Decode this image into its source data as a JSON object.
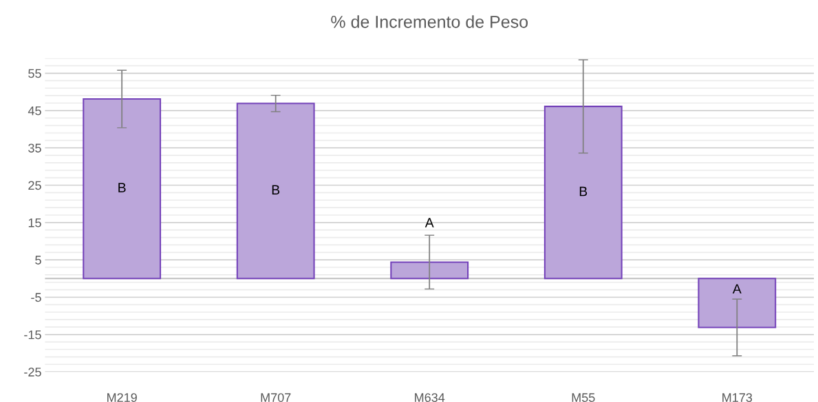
{
  "chart_data": {
    "type": "bar",
    "title": "% de Incremento de Peso",
    "categories": [
      "M219",
      "M707",
      "M634",
      "M55",
      "M173"
    ],
    "values": [
      48.1,
      46.9,
      4.4,
      46.1,
      -13.1
    ],
    "errors": [
      7.7,
      2.2,
      7.2,
      12.5,
      7.6
    ],
    "color": "#bba6da",
    "ylim": [
      -25,
      59
    ],
    "yticks": [
      -25,
      {
        "value": -23,
        "label": null
      },
      {
        "value": -21,
        "label": null
      },
      {
        "value": -19,
        "label": null
      },
      {
        "value": -17,
        "label": null
      },
      -15,
      {
        "value": -13,
        "label": null
      },
      {
        "value": -11,
        "label": null
      },
      {
        "value": -9,
        "label": null
      },
      {
        "value": -7,
        "label": null
      },
      -5,
      {
        "value": -3,
        "label": null
      },
      {
        "value": -1,
        "label": null
      },
      {
        "value": 1,
        "label": null
      },
      {
        "value": 3,
        "label": null
      },
      5,
      {
        "value": 7,
        "label": null
      },
      {
        "value": 9,
        "label": null
      },
      {
        "value": 11,
        "label": null
      },
      {
        "value": 13,
        "label": null
      },
      15,
      {
        "value": 17,
        "label": null
      },
      {
        "value": 19,
        "label": null
      },
      {
        "value": 21,
        "label": null
      },
      {
        "value": 23,
        "label": null
      },
      25,
      {
        "value": 27,
        "label": null
      },
      {
        "value": 29,
        "label": null
      },
      {
        "value": 31,
        "label": null
      },
      {
        "value": 33,
        "label": null
      },
      35,
      {
        "value": 37,
        "label": null
      },
      {
        "value": 39,
        "label": null
      },
      {
        "value": 41,
        "label": null
      },
      {
        "value": 43,
        "label": null
      },
      45,
      {
        "value": 47,
        "label": null
      },
      {
        "value": 49,
        "label": null
      },
      {
        "value": 51,
        "label": null
      },
      {
        "value": 53,
        "label": null
      },
      55,
      {
        "value": 57,
        "label": null
      },
      {
        "value": 59,
        "label": null
      }
    ],
    "grid": "y",
    "annotations": [
      "B",
      "B",
      "A",
      "B",
      "A"
    ]
  }
}
